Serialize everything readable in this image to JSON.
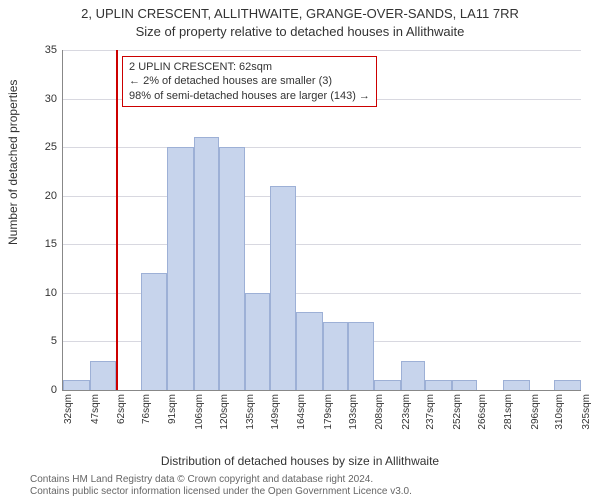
{
  "title_line1": "2, UPLIN CRESCENT, ALLITHWAITE, GRANGE-OVER-SANDS, LA11 7RR",
  "title_line2": "Size of property relative to detached houses in Allithwaite",
  "ylabel": "Number of detached properties",
  "xlabel": "Distribution of detached houses by size in Allithwaite",
  "footer_line1": "Contains HM Land Registry data © Crown copyright and database right 2024.",
  "footer_line2": "Contains public sector information licensed under the Open Government Licence v3.0.",
  "annotation": {
    "line1": "2 UPLIN CRESCENT: 62sqm",
    "line2": "← 2% of detached houses are smaller (3)",
    "line3": "98% of semi-detached houses are larger (143) →",
    "border_color": "#cc0000"
  },
  "chart": {
    "type": "histogram",
    "ylim": [
      0,
      35
    ],
    "ytick_step": 5,
    "grid_color": "#d8d8e0",
    "bar_fill": "#c7d4ec",
    "bar_stroke": "#9db0d6",
    "marker_x_value": 62,
    "marker_color": "#cc0000",
    "categories": [
      "32sqm",
      "47sqm",
      "62sqm",
      "76sqm",
      "91sqm",
      "106sqm",
      "120sqm",
      "135sqm",
      "149sqm",
      "164sqm",
      "179sqm",
      "193sqm",
      "208sqm",
      "223sqm",
      "237sqm",
      "252sqm",
      "266sqm",
      "281sqm",
      "296sqm",
      "310sqm",
      "325sqm"
    ],
    "x_values": [
      32,
      47,
      62,
      76,
      91,
      106,
      120,
      135,
      149,
      164,
      179,
      193,
      208,
      223,
      237,
      252,
      266,
      281,
      296,
      310,
      325
    ],
    "values": [
      1,
      3,
      0,
      12,
      25,
      26,
      25,
      10,
      21,
      8,
      7,
      7,
      1,
      3,
      1,
      1,
      0,
      1,
      0,
      1,
      0
    ]
  }
}
